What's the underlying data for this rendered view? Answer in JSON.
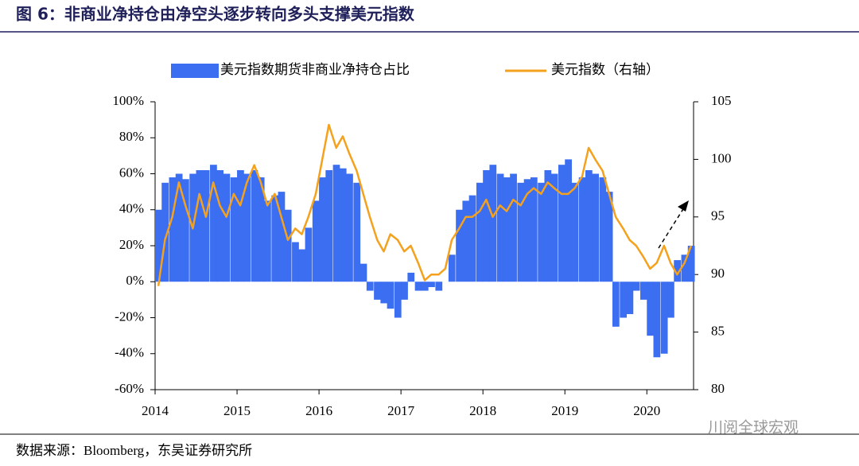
{
  "chart_data": {
    "type": "bar-line",
    "title": "图 6：非商业净持仓由净空头逐步转向多头支撑美元指数",
    "source": "数据来源：Bloomberg，东吴证券研究所",
    "watermark": "川阅全球宏观",
    "x": [
      2014.0,
      2014.08,
      2014.17,
      2014.25,
      2014.33,
      2014.42,
      2014.5,
      2014.58,
      2014.67,
      2014.75,
      2014.83,
      2014.92,
      2015.0,
      2015.08,
      2015.17,
      2015.25,
      2015.33,
      2015.42,
      2015.5,
      2015.58,
      2015.67,
      2015.75,
      2015.83,
      2015.92,
      2016.0,
      2016.08,
      2016.17,
      2016.25,
      2016.33,
      2016.42,
      2016.5,
      2016.58,
      2016.67,
      2016.75,
      2016.83,
      2016.92,
      2017.0,
      2017.08,
      2017.17,
      2017.25,
      2017.33,
      2017.42,
      2017.5,
      2017.58,
      2017.67,
      2017.75,
      2017.83,
      2017.92,
      2018.0,
      2018.08,
      2018.17,
      2018.25,
      2018.33,
      2018.42,
      2018.5,
      2018.58,
      2018.67,
      2018.75,
      2018.83,
      2018.92,
      2019.0,
      2019.08,
      2019.17,
      2019.25,
      2019.33,
      2019.42,
      2019.5,
      2019.58,
      2019.67,
      2019.75,
      2019.83,
      2019.92,
      2020.0,
      2020.08,
      2020.17,
      2020.25,
      2020.33,
      2020.42,
      2020.5
    ],
    "series": [
      {
        "name": "美元指数期货非商业净持仓占比",
        "type": "bar",
        "color": "#3b6ef0",
        "axis": "y",
        "values": [
          40,
          55,
          58,
          60,
          57,
          60,
          62,
          62,
          65,
          62,
          60,
          58,
          62,
          60,
          62,
          58,
          45,
          48,
          50,
          40,
          22,
          18,
          30,
          45,
          58,
          62,
          65,
          63,
          60,
          55,
          10,
          -5,
          -10,
          -12,
          -15,
          -20,
          -10,
          5,
          -5,
          -5,
          -3,
          -5,
          0,
          15,
          40,
          45,
          48,
          55,
          62,
          65,
          60,
          58,
          60,
          55,
          57,
          58,
          55,
          62,
          60,
          65,
          68,
          55,
          58,
          62,
          60,
          58,
          50,
          -25,
          -20,
          -18,
          -5,
          -10,
          -30,
          -42,
          -40,
          -20,
          12,
          15,
          20
        ]
      },
      {
        "name": "美元指数（右轴）",
        "type": "line",
        "color": "#f4a11e",
        "axis": "y2",
        "values": [
          89,
          93,
          95,
          98,
          96,
          94,
          97,
          95,
          98,
          96,
          95,
          97,
          96,
          98,
          99.5,
          98,
          96,
          97,
          95,
          93,
          94,
          93.5,
          95,
          97,
          100,
          103,
          101,
          102,
          100.5,
          99,
          97,
          95,
          93,
          92,
          93.5,
          93,
          92,
          92.5,
          91,
          89.5,
          90,
          90,
          90.5,
          93,
          94,
          95,
          95,
          95.5,
          96.5,
          95,
          96,
          95.5,
          96.5,
          96,
          97,
          97.5,
          97,
          98,
          97.5,
          97,
          97,
          97.5,
          98.5,
          101,
          100,
          99,
          97,
          95,
          94,
          93,
          92.5,
          91.5,
          90.5,
          91,
          92.5,
          91,
          90,
          91,
          92.5
        ]
      }
    ],
    "xlim": [
      2014,
      2020.57
    ],
    "xticks": [
      2014,
      2015,
      2016,
      2017,
      2018,
      2019,
      2020
    ],
    "ylim": [
      -60,
      100
    ],
    "yticks": [
      {
        "value": -60,
        "label": "-60%"
      },
      {
        "value": -40,
        "label": "-40%"
      },
      {
        "value": -20,
        "label": "-20%"
      },
      {
        "value": 0,
        "label": "0%"
      },
      {
        "value": 20,
        "label": "20%"
      },
      {
        "value": 40,
        "label": "40%"
      },
      {
        "value": 60,
        "label": "60%"
      },
      {
        "value": 80,
        "label": "80%"
      },
      {
        "value": 100,
        "label": "100%"
      }
    ],
    "y2lim": [
      80,
      105
    ],
    "y2ticks": [
      80,
      85,
      90,
      95,
      100,
      105
    ]
  }
}
